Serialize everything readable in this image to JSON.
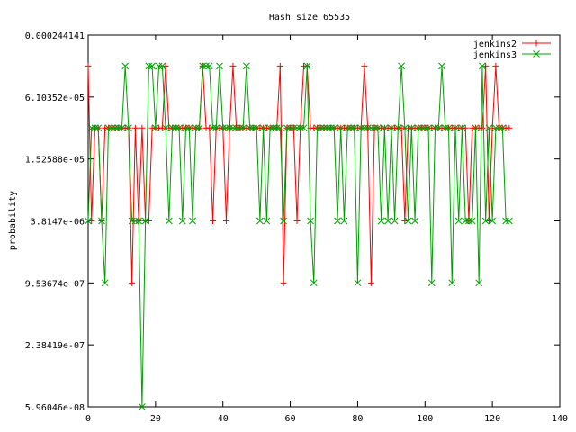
{
  "chart_data": {
    "type": "line",
    "title": "Hash size 65535",
    "xlabel": "",
    "ylabel": "probability",
    "y_scale": "log",
    "xlim": [
      0,
      140
    ],
    "ylim": [
      5.96046e-08,
      0.000244141
    ],
    "x_ticks": [
      0,
      20,
      40,
      60,
      80,
      100,
      120,
      140
    ],
    "x_tick_labels": [
      "0",
      "20",
      "40",
      "60",
      "80",
      "100",
      "120",
      "140"
    ],
    "y_ticks": [
      0.000244141,
      6.10352e-05,
      1.52588e-05,
      3.8147e-06,
      9.53674e-07,
      2.38419e-07,
      5.96046e-08
    ],
    "y_tick_labels": [
      "0.000244141",
      "6.10352e-05",
      "1.52588e-05",
      "3.8147e-06",
      "9.53674e-07",
      "2.38419e-07",
      "5.96046e-08"
    ],
    "grid": false,
    "legend_position": "top-right",
    "x": [
      0,
      1,
      2,
      3,
      4,
      5,
      6,
      7,
      8,
      9,
      10,
      11,
      12,
      13,
      14,
      15,
      16,
      17,
      18,
      19,
      20,
      21,
      22,
      23,
      24,
      25,
      26,
      27,
      28,
      29,
      30,
      31,
      32,
      33,
      34,
      35,
      36,
      37,
      38,
      39,
      40,
      41,
      42,
      43,
      44,
      45,
      46,
      47,
      48,
      49,
      50,
      51,
      52,
      53,
      54,
      55,
      56,
      57,
      58,
      59,
      60,
      61,
      62,
      63,
      64,
      65,
      66,
      67,
      68,
      69,
      70,
      71,
      72,
      73,
      74,
      75,
      76,
      77,
      78,
      79,
      80,
      81,
      82,
      83,
      84,
      85,
      86,
      87,
      88,
      89,
      90,
      91,
      92,
      93,
      94,
      95,
      96,
      97,
      98,
      99,
      100,
      101,
      102,
      103,
      104,
      105,
      106,
      107,
      108,
      109,
      110,
      111,
      112,
      113,
      114,
      115,
      116,
      117,
      118,
      119,
      120,
      121,
      122,
      123,
      124,
      125
    ],
    "series": [
      {
        "name": "jenkins2",
        "color": "#ff0000",
        "marker": "plus",
        "values": [
          0.0001221,
          3.8147e-06,
          3.05e-05,
          3.05e-05,
          3.8147e-06,
          3.05e-05,
          3.05e-05,
          3.05e-05,
          3.05e-05,
          3.05e-05,
          3.05e-05,
          3.05e-05,
          3.05e-05,
          9.537e-07,
          3.05e-05,
          3.8147e-06,
          3.05e-05,
          3.8147e-06,
          3.8147e-06,
          3.05e-05,
          3.05e-05,
          3.05e-05,
          3.05e-05,
          0.0001221,
          3.05e-05,
          3.05e-05,
          3.05e-05,
          3.05e-05,
          3.05e-05,
          3.05e-05,
          3.05e-05,
          3.05e-05,
          3.05e-05,
          3.05e-05,
          0.0001221,
          3.05e-05,
          3.05e-05,
          3.8147e-06,
          3.05e-05,
          3.05e-05,
          3.05e-05,
          3.8147e-06,
          3.05e-05,
          0.0001221,
          3.05e-05,
          3.05e-05,
          3.05e-05,
          3.05e-05,
          3.05e-05,
          3.05e-05,
          3.05e-05,
          3.05e-05,
          3.05e-05,
          3.05e-05,
          3.05e-05,
          3.05e-05,
          3.05e-05,
          0.0001221,
          9.537e-07,
          3.05e-05,
          3.05e-05,
          3.05e-05,
          3.8147e-06,
          3.05e-05,
          0.0001221,
          0.0001221,
          3.05e-05,
          3.05e-05,
          3.05e-05,
          3.05e-05,
          3.05e-05,
          3.05e-05,
          3.05e-05,
          3.05e-05,
          3.05e-05,
          3.05e-05,
          3.05e-05,
          3.05e-05,
          3.05e-05,
          3.05e-05,
          3.05e-05,
          3.05e-05,
          0.0001221,
          3.05e-05,
          9.537e-07,
          3.05e-05,
          3.05e-05,
          3.05e-05,
          3.05e-05,
          3.05e-05,
          3.05e-05,
          3.05e-05,
          3.05e-05,
          3.05e-05,
          3.8147e-06,
          3.05e-05,
          3.05e-05,
          3.05e-05,
          3.05e-05,
          3.05e-05,
          3.05e-05,
          3.05e-05,
          3.05e-05,
          3.05e-05,
          3.05e-05,
          3.05e-05,
          3.05e-05,
          3.05e-05,
          3.05e-05,
          3.05e-05,
          3.05e-05,
          3.05e-05,
          3.05e-05,
          3.8147e-06,
          3.05e-05,
          3.05e-05,
          3.05e-05,
          3.05e-05,
          0.0001221,
          3.8147e-06,
          3.05e-05,
          0.0001221,
          3.05e-05,
          3.05e-05,
          3.05e-05,
          3.05e-05
        ]
      },
      {
        "name": "jenkins3",
        "color": "#00a000",
        "marker": "cross",
        "values": [
          3.8147e-06,
          3.05e-05,
          3.05e-05,
          3.05e-05,
          3.8147e-06,
          9.537e-07,
          3.05e-05,
          3.05e-05,
          3.05e-05,
          3.05e-05,
          3.05e-05,
          0.0001221,
          3.05e-05,
          3.8147e-06,
          3.8147e-06,
          3.8147e-06,
          5.96e-08,
          3.8147e-06,
          0.0001221,
          0.0001221,
          3.05e-05,
          0.0001221,
          0.0001221,
          3.05e-05,
          3.8147e-06,
          3.05e-05,
          3.05e-05,
          3.05e-05,
          3.8147e-06,
          3.05e-05,
          3.05e-05,
          3.8147e-06,
          3.05e-05,
          3.05e-05,
          0.0001221,
          0.0001221,
          0.0001221,
          3.05e-05,
          3.05e-05,
          0.0001221,
          3.05e-05,
          3.05e-05,
          3.05e-05,
          3.05e-05,
          3.05e-05,
          3.05e-05,
          3.05e-05,
          0.0001221,
          3.05e-05,
          3.05e-05,
          3.05e-05,
          3.8147e-06,
          3.05e-05,
          3.8147e-06,
          3.05e-05,
          3.05e-05,
          3.05e-05,
          3.05e-05,
          3.8147e-06,
          3.05e-05,
          3.05e-05,
          3.05e-05,
          3.05e-05,
          3.05e-05,
          3.05e-05,
          0.0001221,
          3.8147e-06,
          9.537e-07,
          3.05e-05,
          3.05e-05,
          3.05e-05,
          3.05e-05,
          3.05e-05,
          3.05e-05,
          3.8147e-06,
          3.05e-05,
          3.8147e-06,
          3.05e-05,
          3.05e-05,
          3.05e-05,
          9.537e-07,
          3.05e-05,
          3.05e-05,
          3.05e-05,
          3.05e-05,
          3.05e-05,
          3.05e-05,
          3.8147e-06,
          3.05e-05,
          3.8147e-06,
          3.05e-05,
          3.8147e-06,
          3.05e-05,
          0.0001221,
          3.05e-05,
          3.8147e-06,
          3.05e-05,
          3.8147e-06,
          3.05e-05,
          3.05e-05,
          3.05e-05,
          3.05e-05,
          9.537e-07,
          3.05e-05,
          3.05e-05,
          0.0001221,
          3.05e-05,
          3.05e-05,
          9.537e-07,
          3.05e-05,
          3.8147e-06,
          3.05e-05,
          3.8147e-06,
          3.8147e-06,
          3.8147e-06,
          3.05e-05,
          9.537e-07,
          0.0001221,
          3.8147e-06,
          3.05e-05,
          3.8147e-06,
          3.05e-05,
          3.05e-05,
          3.05e-05,
          3.8147e-06,
          3.8147e-06
        ]
      }
    ]
  }
}
